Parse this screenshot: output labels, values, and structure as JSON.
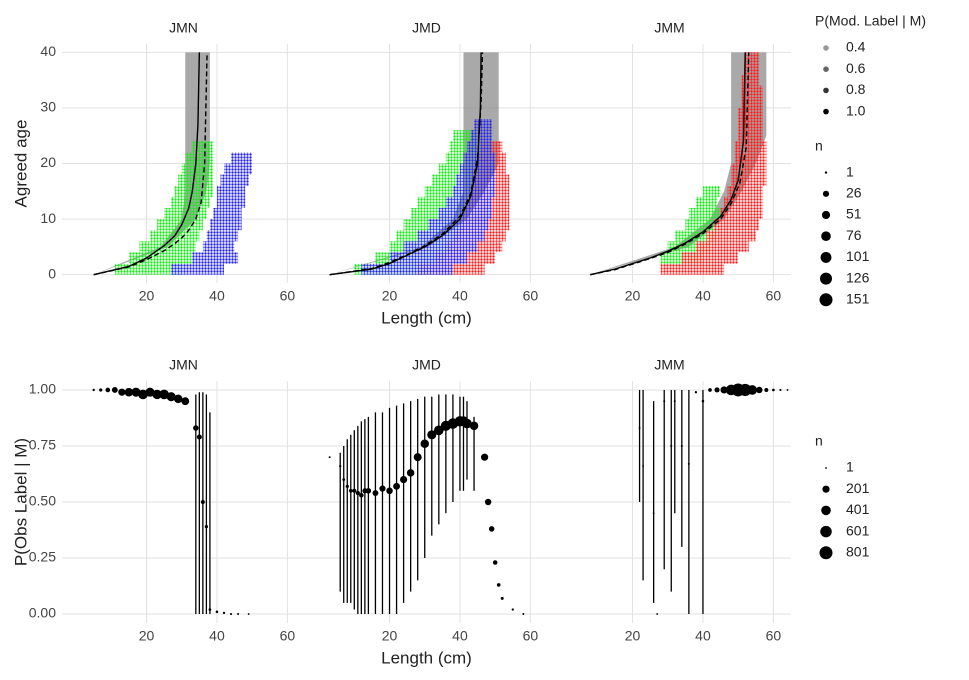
{
  "chart_data": [
    {
      "type": "scatter",
      "title": "JMN",
      "ylabel": "Agreed age",
      "xlim": [
        -4,
        65
      ],
      "xticks": [
        20,
        40,
        60
      ],
      "ylim": [
        -1.5,
        41.5
      ],
      "yticks": [
        0,
        10,
        20,
        30,
        40
      ],
      "grid": true,
      "ribbon": {
        "color": "#8c8c8c",
        "y": [
          0,
          5,
          10,
          15,
          20,
          25,
          30,
          35,
          40
        ],
        "xlow": [
          5,
          24,
          30,
          31,
          31,
          31,
          31,
          31,
          31
        ],
        "xhigh": [
          5,
          26,
          34,
          37,
          38,
          38,
          38,
          38,
          38
        ]
      },
      "series": [
        {
          "color": "#19e619",
          "y": [
            1,
            3,
            5,
            7,
            9,
            11,
            13,
            15,
            17,
            19,
            21,
            23
          ],
          "xmin": [
            11,
            15,
            18,
            21,
            23,
            25,
            27,
            28,
            29,
            30,
            31,
            33
          ],
          "xmax": [
            30,
            33,
            34,
            35,
            36,
            37,
            38,
            39,
            39,
            39,
            39,
            39
          ]
        },
        {
          "color": "#2222ee",
          "y": [
            1,
            3,
            5,
            7,
            9,
            11,
            13,
            15,
            17,
            19,
            21
          ],
          "xmin": [
            27,
            33,
            36,
            37,
            38,
            39,
            40,
            40,
            41,
            42,
            44
          ],
          "xmax": [
            42,
            46,
            45,
            46,
            47,
            47,
            48,
            48,
            49,
            50,
            50
          ]
        }
      ],
      "lines": [
        {
          "style": "solid",
          "x": [
            5,
            15,
            20,
            25,
            28,
            30,
            32,
            33,
            34,
            34.6,
            35
          ],
          "y": [
            0,
            1.5,
            3,
            5.2,
            7,
            9,
            12,
            15,
            20,
            27,
            40
          ]
        },
        {
          "style": "dashed",
          "x": [
            5,
            15,
            20,
            25,
            28,
            30,
            32,
            34,
            35.5,
            36.5,
            37.2
          ],
          "y": [
            0,
            1.4,
            2.7,
            4.3,
            5.6,
            6.6,
            8,
            10,
            13,
            20,
            40
          ]
        }
      ]
    },
    {
      "type": "scatter",
      "title": "JMD",
      "xlabel": "Length (cm)",
      "xlim": [
        -4,
        65
      ],
      "xticks": [
        20,
        40,
        60
      ],
      "ylim": [
        -1.5,
        41.5
      ],
      "yticks": [
        0,
        10,
        20,
        30,
        40
      ],
      "grid": true,
      "ribbon": {
        "color": "#8c8c8c",
        "y": [
          0,
          5,
          10,
          15,
          20,
          25,
          30,
          35,
          40
        ],
        "xlow": [
          3,
          29,
          38,
          41,
          41,
          41,
          41,
          41,
          41
        ],
        "xhigh": [
          3,
          31,
          42,
          47,
          51,
          51,
          51,
          51,
          51
        ]
      },
      "series": [
        {
          "color": "#19e619",
          "y": [
            1,
            3,
            5,
            7,
            9,
            11,
            13,
            15,
            17,
            19,
            21,
            23,
            25
          ],
          "xmin": [
            10,
            16,
            20,
            22,
            24,
            26,
            28,
            30,
            32,
            34,
            36,
            37,
            38
          ],
          "xmax": [
            32,
            36,
            38,
            40,
            41,
            42,
            43,
            44,
            44,
            45,
            45,
            45,
            45
          ]
        },
        {
          "color": "#ff1a1a",
          "y": [
            1,
            3,
            5,
            7,
            9,
            11,
            13,
            15,
            17,
            19,
            21,
            23
          ],
          "xmin": [
            28,
            33,
            36,
            38,
            40,
            41,
            42,
            43,
            44,
            44,
            45,
            46
          ],
          "xmax": [
            47,
            50,
            52,
            53,
            54,
            54,
            54,
            54,
            54,
            53,
            53,
            52
          ]
        },
        {
          "color": "#2222ee",
          "y": [
            1,
            3,
            5,
            7,
            9,
            11,
            13,
            15,
            17,
            19,
            21,
            23,
            25,
            27
          ],
          "xmin": [
            12,
            20,
            24,
            28,
            31,
            34,
            36,
            38,
            39,
            40,
            41,
            42,
            43,
            44
          ],
          "xmax": [
            38,
            42,
            45,
            47,
            48,
            49,
            49,
            50,
            50,
            50,
            50,
            49,
            49,
            49
          ]
        }
      ],
      "lines": [
        {
          "style": "solid",
          "x": [
            3,
            15,
            20,
            25,
            30,
            35,
            40,
            43,
            45,
            45.8,
            46
          ],
          "y": [
            0,
            1,
            2,
            3.5,
            5,
            7,
            10,
            14,
            20,
            30,
            40
          ]
        },
        {
          "style": "dashed",
          "x": [
            3,
            15,
            20,
            25,
            30,
            35,
            40,
            43,
            45,
            46,
            46.4
          ],
          "y": [
            0,
            1.1,
            2.2,
            3.6,
            5.2,
            7.3,
            10.5,
            14.5,
            21,
            31,
            40
          ]
        }
      ]
    },
    {
      "type": "scatter",
      "title": "JMM",
      "xlim": [
        -4,
        65
      ],
      "xticks": [
        20,
        40,
        60
      ],
      "ylim": [
        -1.5,
        41.5
      ],
      "yticks": [
        0,
        10,
        20,
        30,
        40
      ],
      "grid": true,
      "ribbon": {
        "color": "#8c8c8c",
        "y": [
          0,
          5,
          10,
          15,
          20,
          25,
          30,
          35,
          40
        ],
        "xlow": [
          8,
          32,
          42,
          46,
          48,
          48,
          48,
          48,
          48
        ],
        "xhigh": [
          8,
          36,
          46,
          51,
          55,
          58,
          58,
          58,
          58
        ]
      },
      "series": [
        {
          "color": "#19e619",
          "y": [
            3,
            5,
            7,
            9,
            11,
            13,
            15
          ],
          "xmin": [
            28,
            30,
            32,
            35,
            36,
            38,
            40
          ],
          "xmax": [
            40,
            42,
            44,
            44,
            45,
            44,
            45
          ]
        },
        {
          "color": "#ff1a1a",
          "y": [
            1,
            3,
            5,
            7,
            9,
            11,
            13,
            15,
            17,
            19,
            21,
            23,
            25,
            27,
            29,
            31,
            33,
            35,
            37,
            39
          ],
          "xmin": [
            28,
            34,
            38,
            41,
            43,
            45,
            46,
            47,
            48,
            48,
            49,
            49,
            50,
            50,
            50,
            51,
            51,
            51,
            52,
            52
          ],
          "xmax": [
            46,
            50,
            53,
            55,
            56,
            57,
            57,
            57,
            58,
            58,
            58,
            58,
            57,
            57,
            57,
            57,
            57,
            56,
            56,
            56
          ]
        }
      ],
      "lines": [
        {
          "style": "solid",
          "x": [
            8,
            15,
            20,
            25,
            30,
            35,
            40,
            45,
            48,
            50,
            51.5,
            52
          ],
          "y": [
            0,
            1,
            2,
            3,
            4.2,
            5.7,
            7.7,
            10.5,
            13.5,
            17,
            24,
            40
          ]
        },
        {
          "style": "dashed",
          "x": [
            8,
            15,
            20,
            25,
            30,
            35,
            40,
            45,
            48,
            50.5,
            52.3,
            53
          ],
          "y": [
            0,
            0.9,
            1.9,
            2.9,
            4,
            5.5,
            7.4,
            10,
            12.8,
            16.5,
            23,
            40
          ]
        }
      ],
      "legend": [
        {
          "kind": "alpha",
          "title": "P(Mod. Label | M)",
          "items": [
            0.4,
            0.6,
            0.8,
            {
              "value": 1,
              "label": "1.0"
            }
          ]
        },
        {
          "kind": "size",
          "title": "n",
          "items": [
            1,
            26,
            51,
            76,
            101,
            126,
            151
          ]
        }
      ]
    },
    {
      "type": "errorbar",
      "title": "JMN",
      "ylabel": "P(Obs Label | M)",
      "xlim": [
        -4,
        65
      ],
      "xticks": [
        20,
        40,
        60
      ],
      "ylim": [
        -0.04,
        1.04
      ],
      "yticks": [
        {
          "value": 0,
          "label": "0.00"
        },
        {
          "value": 0.25,
          "label": "0.25"
        },
        {
          "value": 0.5,
          "label": "0.50"
        },
        {
          "value": 0.75,
          "label": "0.75"
        },
        {
          "value": 1,
          "label": "1.00"
        }
      ],
      "grid": true,
      "x": [
        5,
        7,
        9,
        11,
        13,
        15,
        17,
        19,
        21,
        23,
        25,
        27,
        29,
        31,
        34,
        35,
        36,
        37,
        38,
        40,
        42,
        44,
        46,
        49
      ],
      "values": [
        1,
        1,
        1,
        1,
        0.99,
        0.99,
        0.99,
        0.98,
        0.99,
        0.98,
        0.98,
        0.97,
        0.96,
        0.95,
        0.83,
        0.79,
        0.5,
        0.39,
        0.02,
        0.01,
        0.005,
        0,
        0,
        0
      ],
      "lower": [
        null,
        null,
        null,
        null,
        null,
        null,
        null,
        null,
        null,
        null,
        null,
        null,
        null,
        null,
        0,
        0,
        0,
        0,
        0,
        null,
        null,
        null,
        null,
        null
      ],
      "upper": [
        null,
        null,
        null,
        null,
        null,
        null,
        null,
        null,
        null,
        null,
        null,
        null,
        null,
        null,
        0.98,
        0.99,
        0.99,
        0.98,
        0.9,
        null,
        null,
        null,
        null,
        null
      ],
      "n": [
        5,
        20,
        60,
        120,
        200,
        300,
        350,
        400,
        350,
        380,
        400,
        350,
        300,
        250,
        100,
        80,
        40,
        20,
        10,
        8,
        5,
        3,
        2,
        1
      ]
    },
    {
      "type": "errorbar",
      "title": "JMD",
      "xlabel": "Length (cm)",
      "xlim": [
        -4,
        65
      ],
      "xticks": [
        20,
        40,
        60
      ],
      "ylim": [
        -0.04,
        1.04
      ],
      "yticks": [
        {
          "value": 0,
          "label": "0.00"
        },
        {
          "value": 0.25,
          "label": "0.25"
        },
        {
          "value": 0.5,
          "label": "0.50"
        },
        {
          "value": 0.75,
          "label": "0.75"
        },
        {
          "value": 1,
          "label": "1.00"
        }
      ],
      "grid": true,
      "x": [
        3,
        6,
        7,
        8,
        9,
        10,
        11,
        12,
        13,
        14,
        16,
        18,
        20,
        22,
        24,
        26,
        28,
        30,
        32,
        34,
        36,
        38,
        40,
        41,
        42,
        44,
        47,
        48,
        49,
        50,
        51,
        52,
        55,
        58
      ],
      "values": [
        0.7,
        0.66,
        0.6,
        0.57,
        0.55,
        0.55,
        0.54,
        0.53,
        0.55,
        0.55,
        0.54,
        0.56,
        0.55,
        0.57,
        0.6,
        0.63,
        0.7,
        0.76,
        0.8,
        0.82,
        0.84,
        0.85,
        0.86,
        0.86,
        0.85,
        0.84,
        0.7,
        0.5,
        0.38,
        0.23,
        0.13,
        0.07,
        0.02,
        0
      ],
      "lower": [
        null,
        0.1,
        0.05,
        0.05,
        0.05,
        0.02,
        0,
        0,
        0,
        0,
        0,
        0,
        0,
        0,
        0.05,
        0.1,
        0.15,
        0.25,
        0.35,
        0.4,
        0.45,
        0.5,
        0.55,
        0.55,
        0.6,
        0.55,
        null,
        null,
        null,
        null,
        null,
        null,
        null,
        null
      ],
      "upper": [
        null,
        0.72,
        0.75,
        0.78,
        0.8,
        0.82,
        0.84,
        0.86,
        0.87,
        0.88,
        0.9,
        0.9,
        0.92,
        0.93,
        0.94,
        0.95,
        0.96,
        0.97,
        0.97,
        0.98,
        0.98,
        0.98,
        0.97,
        0.97,
        0.95,
        0.88,
        null,
        null,
        null,
        null,
        null,
        null,
        null,
        null
      ],
      "n": [
        2,
        5,
        10,
        20,
        30,
        40,
        50,
        60,
        80,
        100,
        120,
        140,
        160,
        180,
        200,
        220,
        260,
        300,
        350,
        400,
        450,
        500,
        480,
        450,
        400,
        300,
        200,
        150,
        100,
        60,
        30,
        15,
        5,
        2
      ]
    },
    {
      "type": "errorbar",
      "title": "JMM",
      "xlim": [
        -4,
        65
      ],
      "xticks": [
        20,
        40,
        60
      ],
      "ylim": [
        -0.04,
        1.04
      ],
      "yticks": [
        {
          "value": 0,
          "label": "0.00"
        },
        {
          "value": 0.25,
          "label": "0.25"
        },
        {
          "value": 0.5,
          "label": "0.50"
        },
        {
          "value": 0.75,
          "label": "0.75"
        },
        {
          "value": 1,
          "label": "1.00"
        }
      ],
      "grid": true,
      "x": [
        22,
        23,
        26,
        27,
        29,
        31,
        32,
        34,
        36,
        38,
        40,
        42,
        44,
        46,
        48,
        50,
        52,
        54,
        56,
        58,
        60,
        62,
        64
      ],
      "values": [
        0.83,
        0.66,
        0.45,
        0,
        0.95,
        0.75,
        0.95,
        0.75,
        0.67,
        0.99,
        0.95,
        1,
        1,
        1,
        1,
        1,
        1,
        1,
        1,
        1,
        1,
        1,
        1
      ],
      "lower": [
        0.5,
        0.15,
        0.05,
        null,
        0.2,
        0.1,
        0.45,
        0.3,
        0,
        null,
        0,
        null,
        null,
        null,
        null,
        null,
        null,
        null,
        null,
        null,
        null,
        null,
        null
      ],
      "upper": [
        1,
        1,
        0.95,
        null,
        1,
        1,
        1,
        1,
        1,
        null,
        1,
        null,
        null,
        null,
        null,
        null,
        null,
        null,
        null,
        null,
        null,
        null,
        null
      ],
      "n": [
        2,
        1,
        1,
        1,
        2,
        3,
        2,
        3,
        3,
        5,
        8,
        30,
        80,
        200,
        500,
        800,
        700,
        400,
        150,
        40,
        10,
        3,
        1
      ],
      "legend": [
        {
          "kind": "size",
          "title": "n",
          "items": [
            1,
            201,
            401,
            601,
            801
          ]
        }
      ]
    }
  ]
}
